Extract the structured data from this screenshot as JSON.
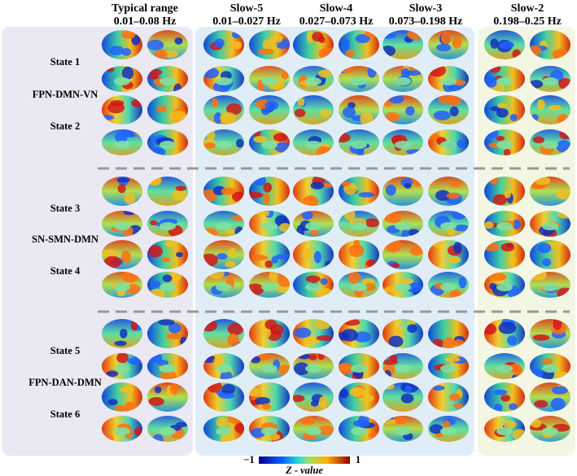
{
  "columns": [
    {
      "title": "Typical range",
      "band": "0.01–0.08 Hz"
    },
    {
      "title": "Slow-5",
      "band": "0.01–0.027 Hz"
    },
    {
      "title": "Slow-4",
      "band": "0.027–0.073 Hz"
    },
    {
      "title": "Slow-3",
      "band": "0.073–0.198 Hz"
    },
    {
      "title": "Slow-2",
      "band": "0.198–0.25 Hz"
    }
  ],
  "groups": [
    {
      "network": "FPN-DMN-VN",
      "states": [
        "State 1",
        "State 2"
      ]
    },
    {
      "network": "SN-SMN-DMN",
      "states": [
        "State 3",
        "State 4"
      ]
    },
    {
      "network": "FPN-DAN-DMN",
      "states": [
        "State 5",
        "State 6"
      ]
    }
  ],
  "colorbar": {
    "min_label": "−1",
    "max_label": "1",
    "label": "Z - value"
  }
}
